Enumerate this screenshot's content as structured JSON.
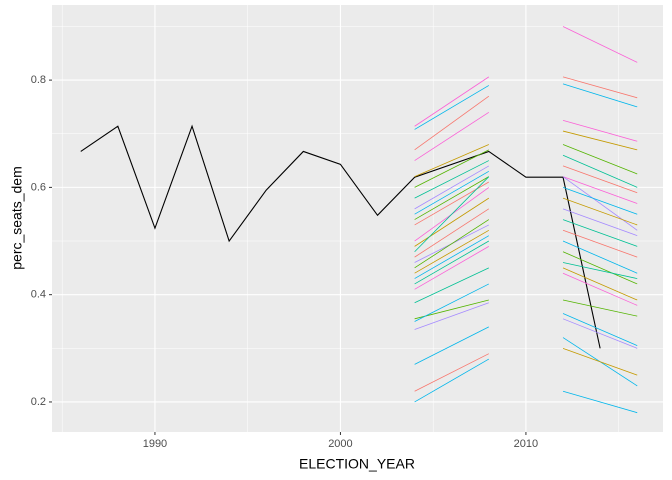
{
  "chart_data": {
    "type": "line",
    "x_label": "ELECTION_YEAR",
    "y_label": "perc_seats_dem",
    "xlim": [
      1984.45,
      2017.39
    ],
    "ylim": [
      0.144,
      0.94
    ],
    "xticks": [
      1990,
      2000,
      2010
    ],
    "yticks": [
      0.2,
      0.4,
      0.6,
      0.8
    ],
    "x_minor_ticks": [
      1985,
      1995,
      2005,
      2015
    ],
    "y_minor_ticks": [
      0.3,
      0.5,
      0.7,
      0.9
    ],
    "grid": true,
    "series": [
      {
        "color": "#000000",
        "x": [
          1986,
          1988,
          1990,
          1992,
          1994,
          1996,
          1998,
          2000,
          2002,
          2004,
          2008,
          2010,
          2012,
          2014
        ],
        "values": [
          0.667,
          0.714,
          0.524,
          0.714,
          0.5,
          0.595,
          0.667,
          0.643,
          0.548,
          0.619,
          0.667,
          0.619,
          0.619,
          0.3
        ]
      },
      {
        "color": "#FB61D7",
        "x": [
          2004,
          2008
        ],
        "values": [
          0.714,
          0.806
        ]
      },
      {
        "color": "#00B6EB",
        "x": [
          2004,
          2008
        ],
        "values": [
          0.708,
          0.79
        ]
      },
      {
        "color": "#F8766D",
        "x": [
          2004,
          2008
        ],
        "values": [
          0.67,
          0.77
        ]
      },
      {
        "color": "#FB61D7",
        "x": [
          2004,
          2008
        ],
        "values": [
          0.65,
          0.74
        ]
      },
      {
        "color": "#C49A00",
        "x": [
          2004,
          2008
        ],
        "values": [
          0.62,
          0.68
        ]
      },
      {
        "color": "#53B400",
        "x": [
          2004,
          2008
        ],
        "values": [
          0.6,
          0.67
        ]
      },
      {
        "color": "#00C094",
        "x": [
          2004,
          2008
        ],
        "values": [
          0.58,
          0.65
        ]
      },
      {
        "color": "#A58AFF",
        "x": [
          2004,
          2008
        ],
        "values": [
          0.56,
          0.64
        ]
      },
      {
        "color": "#00B6EB",
        "x": [
          2004,
          2008
        ],
        "values": [
          0.55,
          0.63
        ]
      },
      {
        "color": "#53B400",
        "x": [
          2004,
          2008
        ],
        "values": [
          0.54,
          0.62
        ]
      },
      {
        "color": "#F8766D",
        "x": [
          2004,
          2008
        ],
        "values": [
          0.53,
          0.61
        ]
      },
      {
        "color": "#FB61D7",
        "x": [
          2004,
          2008
        ],
        "values": [
          0.5,
          0.6
        ]
      },
      {
        "color": "#C49A00",
        "x": [
          2004,
          2008
        ],
        "values": [
          0.49,
          0.58
        ]
      },
      {
        "color": "#00C094",
        "x": [
          2004,
          2008
        ],
        "values": [
          0.48,
          0.62
        ]
      },
      {
        "color": "#F8766D",
        "x": [
          2004,
          2008
        ],
        "values": [
          0.47,
          0.56
        ]
      },
      {
        "color": "#A58AFF",
        "x": [
          2004,
          2008
        ],
        "values": [
          0.46,
          0.53
        ]
      },
      {
        "color": "#53B400",
        "x": [
          2004,
          2008
        ],
        "values": [
          0.45,
          0.54
        ]
      },
      {
        "color": "#C49A00",
        "x": [
          2004,
          2008
        ],
        "values": [
          0.44,
          0.52
        ]
      },
      {
        "color": "#00B6EB",
        "x": [
          2004,
          2008
        ],
        "values": [
          0.43,
          0.51
        ]
      },
      {
        "color": "#00C094",
        "x": [
          2004,
          2008
        ],
        "values": [
          0.42,
          0.5
        ]
      },
      {
        "color": "#FB61D7",
        "x": [
          2004,
          2008
        ],
        "values": [
          0.41,
          0.49
        ]
      },
      {
        "color": "#00C094",
        "x": [
          2004,
          2008
        ],
        "values": [
          0.385,
          0.45
        ]
      },
      {
        "color": "#53B400",
        "x": [
          2004,
          2008
        ],
        "values": [
          0.355,
          0.39
        ]
      },
      {
        "color": "#00B6EB",
        "x": [
          2004,
          2008
        ],
        "values": [
          0.35,
          0.42
        ]
      },
      {
        "color": "#A58AFF",
        "x": [
          2004,
          2008
        ],
        "values": [
          0.335,
          0.385
        ]
      },
      {
        "color": "#00B6EB",
        "x": [
          2004,
          2008
        ],
        "values": [
          0.27,
          0.34
        ]
      },
      {
        "color": "#F8766D",
        "x": [
          2004,
          2008
        ],
        "values": [
          0.22,
          0.29
        ]
      },
      {
        "color": "#00B6EB",
        "x": [
          2004,
          2008
        ],
        "values": [
          0.2,
          0.28
        ]
      },
      {
        "color": "#FB61D7",
        "x": [
          2012,
          2016
        ],
        "values": [
          0.9,
          0.833
        ]
      },
      {
        "color": "#F8766D",
        "x": [
          2012,
          2016
        ],
        "values": [
          0.806,
          0.767
        ]
      },
      {
        "color": "#00B6EB",
        "x": [
          2012,
          2016
        ],
        "values": [
          0.793,
          0.75
        ]
      },
      {
        "color": "#FB61D7",
        "x": [
          2012,
          2016
        ],
        "values": [
          0.725,
          0.686
        ]
      },
      {
        "color": "#C49A00",
        "x": [
          2012,
          2016
        ],
        "values": [
          0.705,
          0.67
        ]
      },
      {
        "color": "#53B400",
        "x": [
          2012,
          2016
        ],
        "values": [
          0.68,
          0.625
        ]
      },
      {
        "color": "#00C094",
        "x": [
          2012,
          2016
        ],
        "values": [
          0.66,
          0.6
        ]
      },
      {
        "color": "#F8766D",
        "x": [
          2012,
          2016
        ],
        "values": [
          0.64,
          0.59
        ]
      },
      {
        "color": "#FB61D7",
        "x": [
          2012,
          2016
        ],
        "values": [
          0.62,
          0.57
        ]
      },
      {
        "color": "#A58AFF",
        "x": [
          2012,
          2016
        ],
        "values": [
          0.62,
          0.52
        ]
      },
      {
        "color": "#00B6EB",
        "x": [
          2012,
          2016
        ],
        "values": [
          0.6,
          0.55
        ]
      },
      {
        "color": "#C49A00",
        "x": [
          2012,
          2016
        ],
        "values": [
          0.58,
          0.53
        ]
      },
      {
        "color": "#A58AFF",
        "x": [
          2012,
          2016
        ],
        "values": [
          0.56,
          0.51
        ]
      },
      {
        "color": "#00C094",
        "x": [
          2012,
          2016
        ],
        "values": [
          0.54,
          0.49
        ]
      },
      {
        "color": "#F8766D",
        "x": [
          2012,
          2016
        ],
        "values": [
          0.52,
          0.47
        ]
      },
      {
        "color": "#00B6EB",
        "x": [
          2012,
          2016
        ],
        "values": [
          0.5,
          0.44
        ]
      },
      {
        "color": "#53B400",
        "x": [
          2012,
          2016
        ],
        "values": [
          0.48,
          0.42
        ]
      },
      {
        "color": "#00C094",
        "x": [
          2012,
          2016
        ],
        "values": [
          0.46,
          0.43
        ]
      },
      {
        "color": "#C49A00",
        "x": [
          2012,
          2016
        ],
        "values": [
          0.45,
          0.39
        ]
      },
      {
        "color": "#FB61D7",
        "x": [
          2012,
          2016
        ],
        "values": [
          0.44,
          0.38
        ]
      },
      {
        "color": "#53B400",
        "x": [
          2012,
          2016
        ],
        "values": [
          0.39,
          0.36
        ]
      },
      {
        "color": "#00B6EB",
        "x": [
          2012,
          2016
        ],
        "values": [
          0.365,
          0.305
        ]
      },
      {
        "color": "#A58AFF",
        "x": [
          2012,
          2016
        ],
        "values": [
          0.355,
          0.3
        ]
      },
      {
        "color": "#00B6EB",
        "x": [
          2012,
          2016
        ],
        "values": [
          0.32,
          0.23
        ]
      },
      {
        "color": "#C49A00",
        "x": [
          2012,
          2016
        ],
        "values": [
          0.3,
          0.25
        ]
      },
      {
        "color": "#00B6EB",
        "x": [
          2012,
          2016
        ],
        "values": [
          0.22,
          0.18
        ]
      }
    ]
  }
}
